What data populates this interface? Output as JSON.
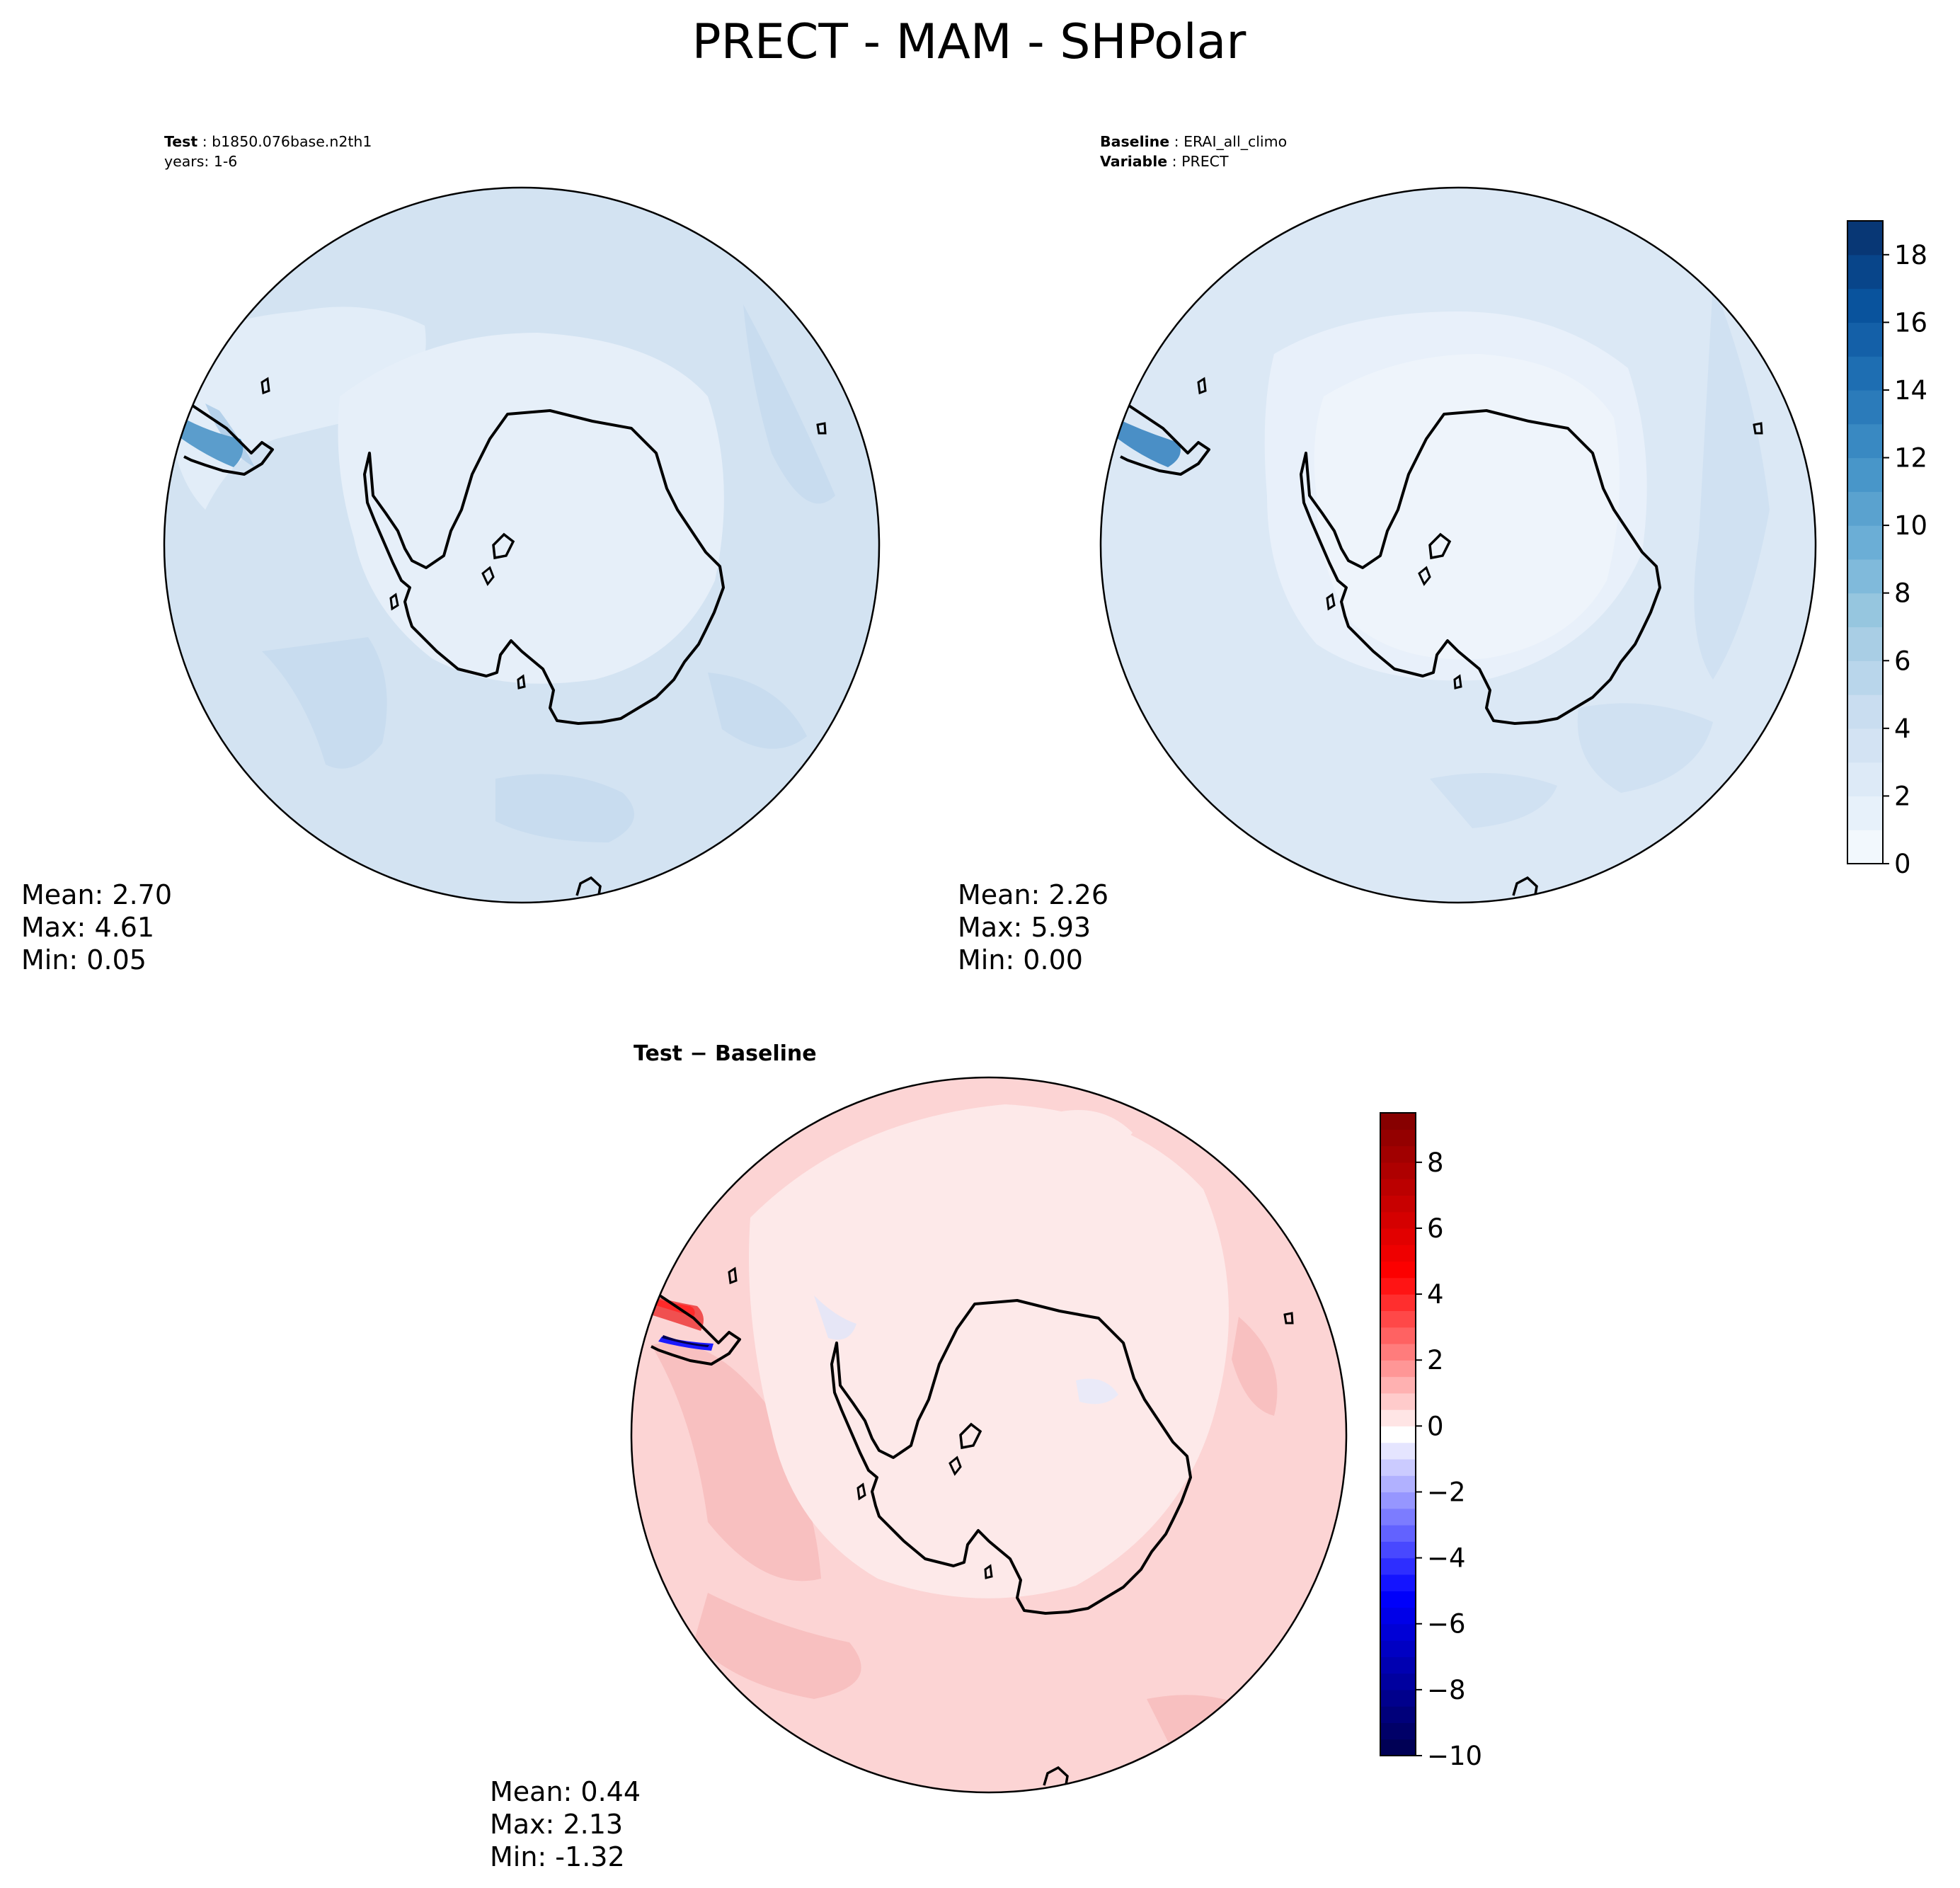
{
  "figure": {
    "title": "PRECT - MAM - SHPolar"
  },
  "panels": {
    "test": {
      "header": [
        {
          "bold": "Test",
          "rest": " : b1850.076base.n2th1"
        },
        {
          "bold": "",
          "rest": "years: 1-6"
        }
      ],
      "stats": [
        "Mean:  2.70",
        "Max:  4.61",
        "Min:  0.05"
      ]
    },
    "baseline": {
      "header": [
        {
          "bold": "Baseline",
          "rest": " : ERAI_all_climo"
        },
        {
          "bold": "Variable",
          "rest": " : PRECT"
        }
      ],
      "stats": [
        "Mean:  2.26",
        "Max:  5.93",
        "Min:  0.00"
      ]
    },
    "diff": {
      "title_bold": "Test − Baseline",
      "stats": [
        "Mean:  0.44",
        "Max:  2.13",
        "Min: -1.32"
      ]
    }
  },
  "chart_data": [
    {
      "type": "heatmap",
      "name": "Test",
      "projection": "south polar stereographic",
      "colormap": "Blues",
      "colorbar": {
        "min": 0,
        "max": 19,
        "step": 1,
        "ticks": [
          0,
          2,
          4,
          6,
          8,
          10,
          12,
          14,
          16,
          18
        ]
      },
      "stats": {
        "mean": 2.7,
        "max": 4.61,
        "min": 0.05
      }
    },
    {
      "type": "heatmap",
      "name": "Baseline",
      "projection": "south polar stereographic",
      "colormap": "Blues",
      "colorbar": {
        "min": 0,
        "max": 19,
        "step": 1,
        "ticks": [
          0,
          2,
          4,
          6,
          8,
          10,
          12,
          14,
          16,
          18
        ]
      },
      "stats": {
        "mean": 2.26,
        "max": 5.93,
        "min": 0.0
      }
    },
    {
      "type": "heatmap",
      "name": "Test - Baseline",
      "projection": "south polar stereographic",
      "colormap": "seismic",
      "colorbar": {
        "min": -10,
        "max": 9.5,
        "step": 0.5,
        "ticks": [
          -10,
          -8,
          -6,
          -4,
          -2,
          0,
          2,
          4,
          6,
          8
        ]
      },
      "stats": {
        "mean": 0.44,
        "max": 2.13,
        "min": -1.32
      }
    }
  ]
}
